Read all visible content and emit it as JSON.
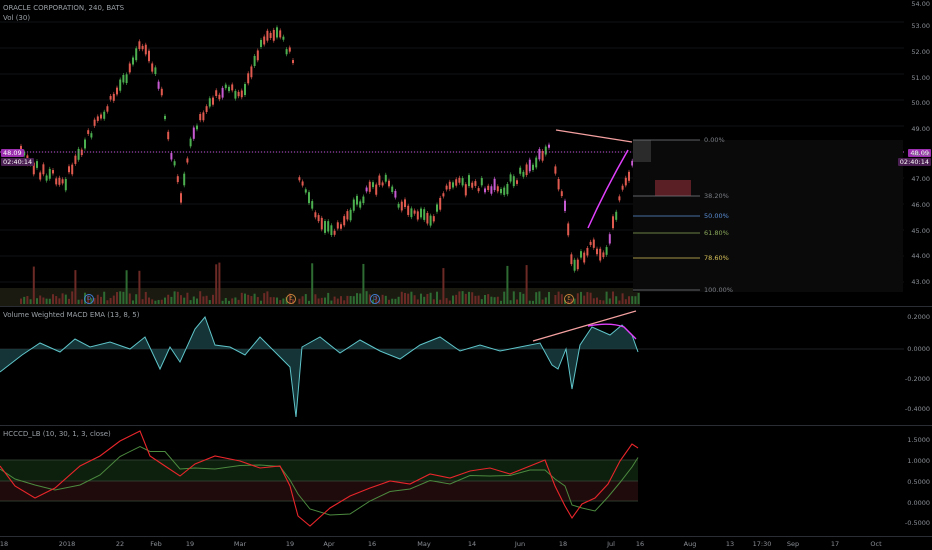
{
  "header": {
    "symbol_line": "ORACLE CORPORATION, 240, BATS",
    "vol_label": "Vol (30)"
  },
  "price_axis": {
    "ticks": [
      "54.00",
      "53.00",
      "52.00",
      "51.00",
      "50.00",
      "49.00",
      "48.00",
      "47.00",
      "46.00",
      "45.00",
      "44.00",
      "43.00"
    ],
    "left_last_price": "48.09",
    "left_countdown": "02:40:14",
    "right_last_price": "48.09",
    "right_countdown": "02:40:14"
  },
  "fib_levels": [
    {
      "label": "0.00%",
      "color": "#7b7f86"
    },
    {
      "label": "38.20%",
      "color": "#7b7f86"
    },
    {
      "label": "50.00%",
      "color": "#5a8fd6"
    },
    {
      "label": "61.80%",
      "color": "#8aa85b"
    },
    {
      "label": "78.60%",
      "color": "#d8c35a"
    },
    {
      "label": "100.00%",
      "color": "#7b7f86"
    }
  ],
  "events": [
    {
      "label": "D",
      "color": "#3f7fd6"
    },
    {
      "label": "E",
      "color": "#c9843b"
    },
    {
      "label": "D",
      "color": "#3f7fd6"
    },
    {
      "label": "E",
      "color": "#c9843b"
    }
  ],
  "macd": {
    "title": "Volume Weighted MACD EMA (13, 8, 5)",
    "ticks": [
      "0.2000",
      "0.0000",
      "-0.2000",
      "-0.4000"
    ]
  },
  "hcccd": {
    "title": "HCCCD_LB (10, 30, 1, 3, close)",
    "ticks": [
      "1.5000",
      "1.0000",
      "0.5000",
      "0.0000",
      "-0.5000"
    ]
  },
  "time_axis": {
    "labels": [
      "18",
      "2018",
      "22",
      "Feb",
      "19",
      "Mar",
      "19",
      "Apr",
      "16",
      "May",
      "14",
      "Jun",
      "18",
      "Jul",
      "16",
      "Aug",
      "13",
      "17:30",
      "Sep",
      "17",
      "Oct"
    ]
  },
  "colors": {
    "up": "#4caf50",
    "down": "#e05a4f",
    "hl_up": "#c75bd1",
    "price_line": "#c24dd6",
    "trend": "#f4a0a0",
    "macd_line": "#5fc4c9",
    "cci_red": "#e8262b",
    "cci_green": "#4c8a3f"
  }
}
